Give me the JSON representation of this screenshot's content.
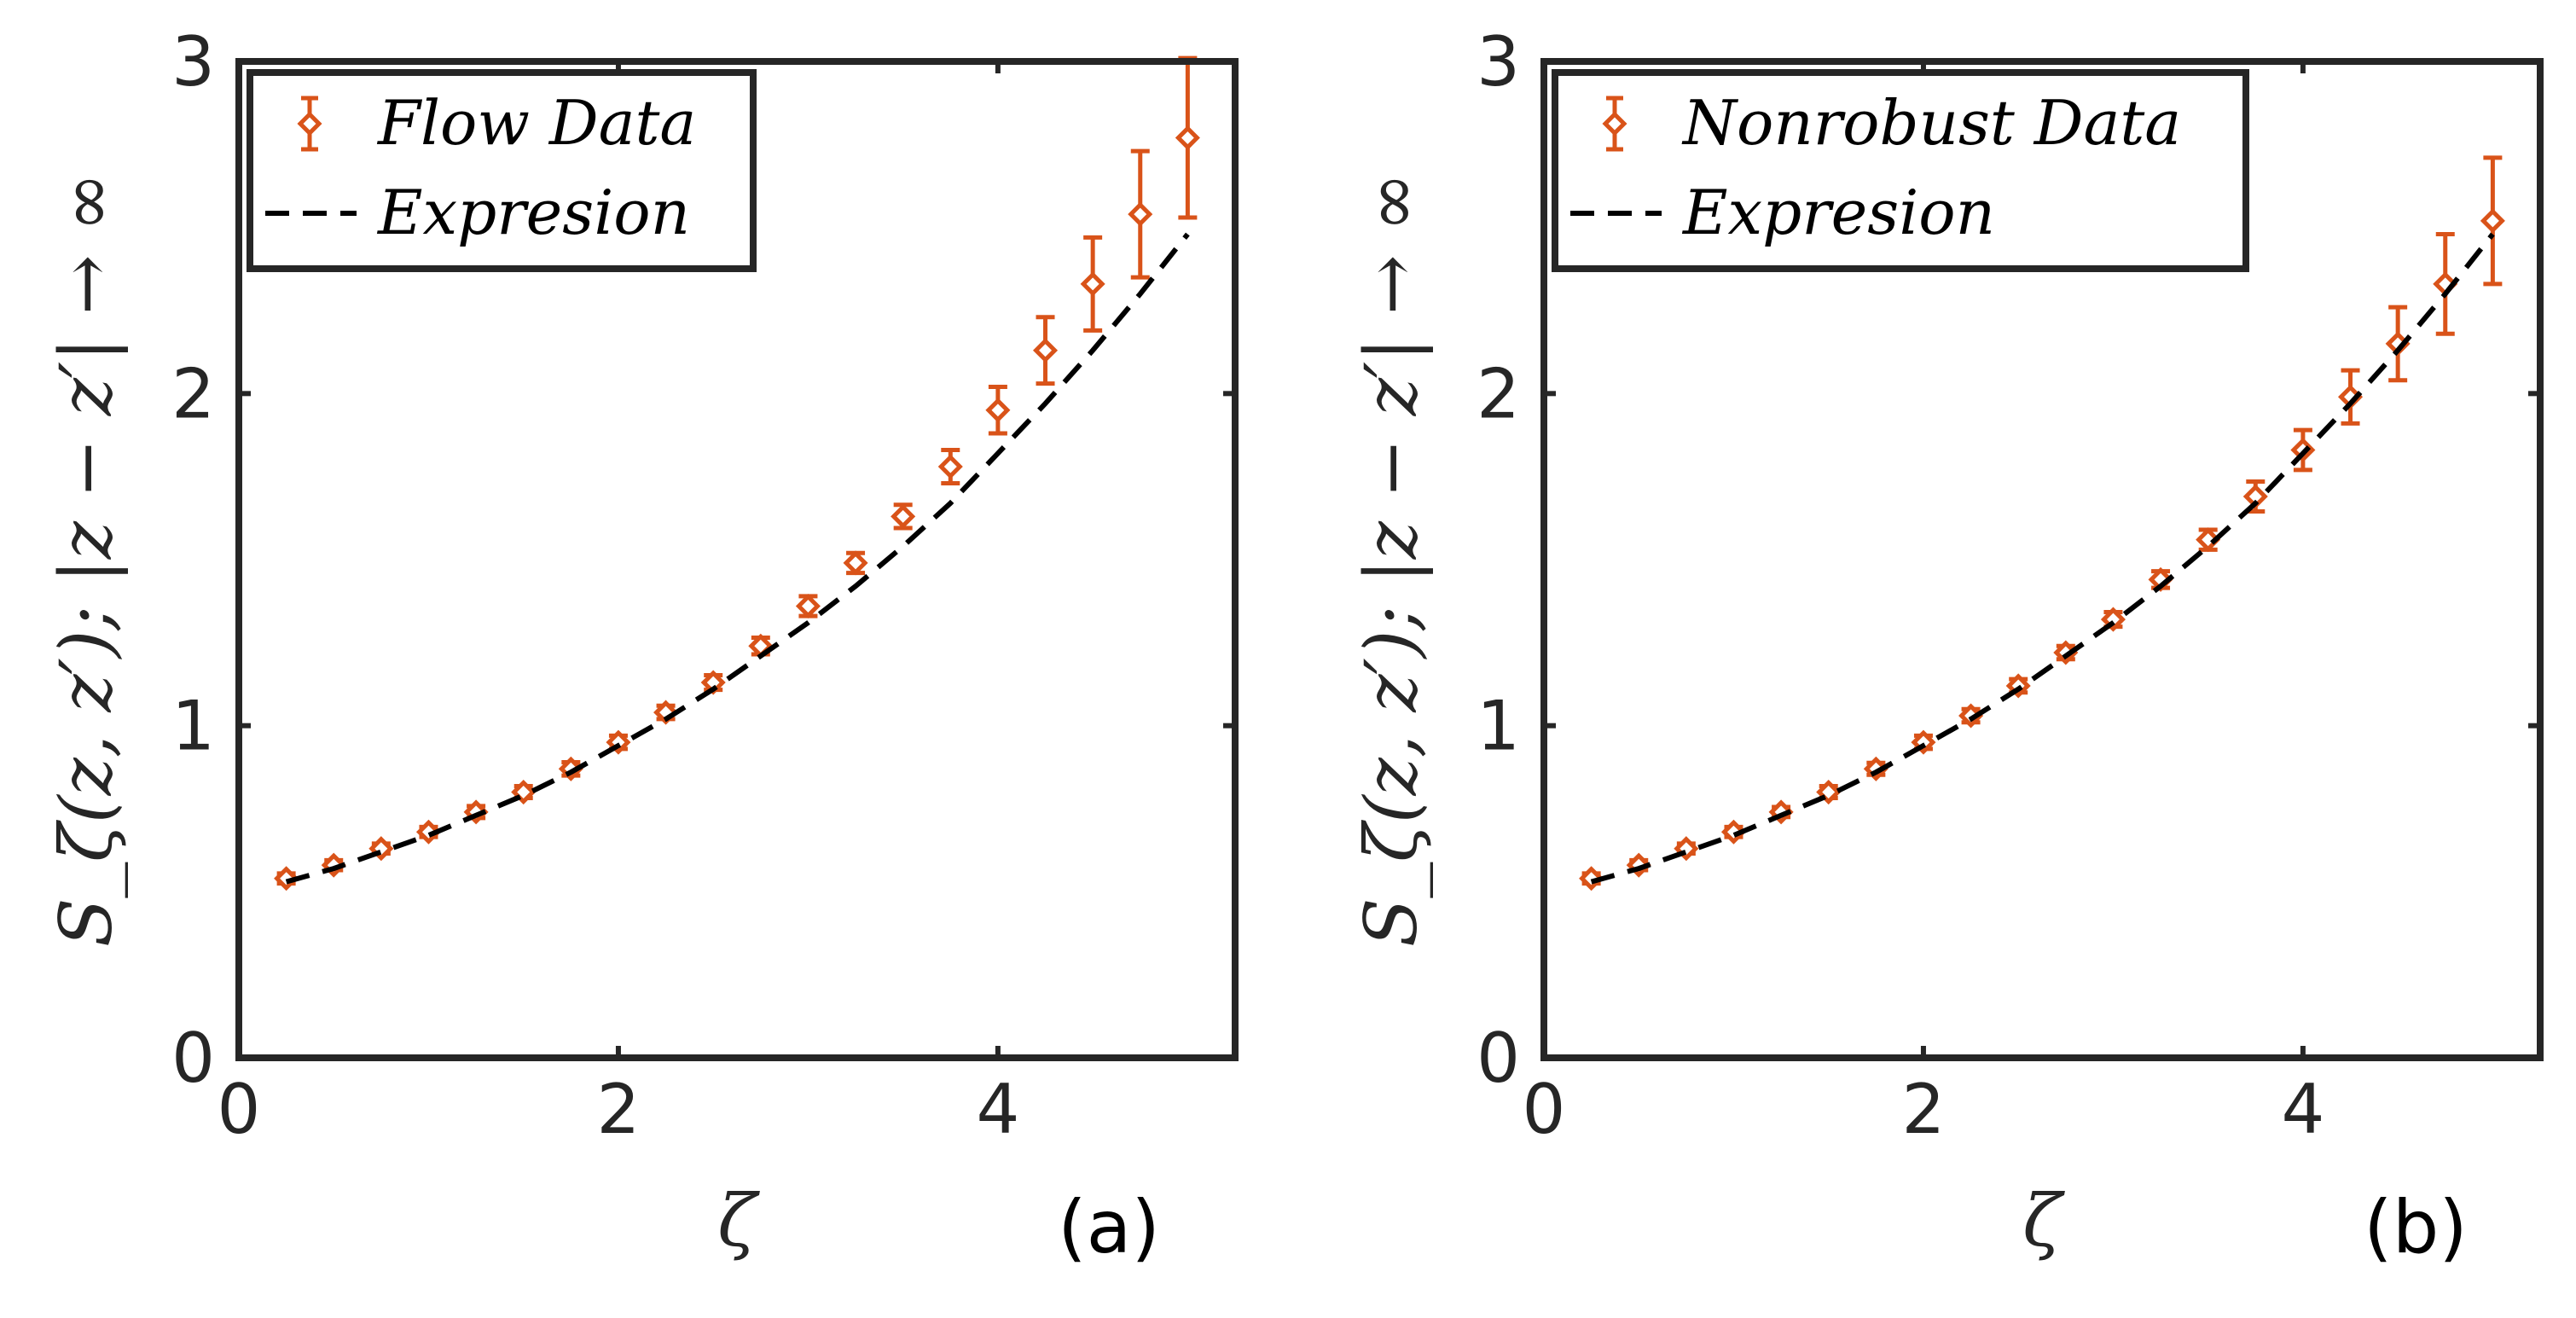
{
  "chart_data": [
    {
      "type": "scatter",
      "panel_label": "(a)",
      "xlabel": "ζ",
      "ylabel": "S_ζ(z, z′); |z − z′| → ∞",
      "xlim": [
        0,
        5.25
      ],
      "ylim": [
        0,
        3
      ],
      "xticks": [
        0,
        2,
        4
      ],
      "yticks": [
        0,
        1,
        2,
        3
      ],
      "legend_position": "top-left",
      "series": [
        {
          "name": "Flow Data",
          "kind": "errorbar",
          "color": "#D95319",
          "x": [
            0.25,
            0.5,
            0.75,
            1.0,
            1.25,
            1.5,
            1.75,
            2.0,
            2.25,
            2.5,
            2.75,
            3.0,
            3.25,
            3.5,
            3.75,
            4.0,
            4.25,
            4.5,
            4.75,
            5.0
          ],
          "y": [
            0.54,
            0.58,
            0.63,
            0.68,
            0.74,
            0.8,
            0.87,
            0.95,
            1.04,
            1.13,
            1.24,
            1.36,
            1.49,
            1.63,
            1.78,
            1.95,
            2.13,
            2.33,
            2.54,
            2.77
          ],
          "err": [
            0.015,
            0.015,
            0.015,
            0.015,
            0.018,
            0.018,
            0.02,
            0.02,
            0.02,
            0.022,
            0.025,
            0.03,
            0.03,
            0.035,
            0.05,
            0.07,
            0.1,
            0.14,
            0.19,
            0.24
          ]
        },
        {
          "name": "Expresion",
          "kind": "dashed-line",
          "color": "#000000",
          "x": [
            0.25,
            0.5,
            0.75,
            1.0,
            1.25,
            1.5,
            1.75,
            2.0,
            2.25,
            2.5,
            2.75,
            3.0,
            3.25,
            3.5,
            3.75,
            4.0,
            4.25,
            4.5,
            4.75,
            5.0
          ],
          "y": [
            0.53,
            0.57,
            0.62,
            0.67,
            0.73,
            0.79,
            0.86,
            0.94,
            1.02,
            1.11,
            1.21,
            1.31,
            1.42,
            1.54,
            1.67,
            1.82,
            1.97,
            2.13,
            2.3,
            2.48
          ]
        }
      ]
    },
    {
      "type": "scatter",
      "panel_label": "(b)",
      "xlabel": "ζ",
      "ylabel": "S_ζ(z, z′); |z − z′| → ∞",
      "xlim": [
        0,
        5.25
      ],
      "ylim": [
        0,
        3
      ],
      "xticks": [
        0,
        2,
        4
      ],
      "yticks": [
        0,
        1,
        2,
        3
      ],
      "legend_position": "top-left",
      "series": [
        {
          "name": "Nonrobust Data",
          "kind": "errorbar",
          "color": "#D95319",
          "x": [
            0.25,
            0.5,
            0.75,
            1.0,
            1.25,
            1.5,
            1.75,
            2.0,
            2.25,
            2.5,
            2.75,
            3.0,
            3.25,
            3.5,
            3.75,
            4.0,
            4.25,
            4.5,
            4.75,
            5.0
          ],
          "y": [
            0.54,
            0.58,
            0.63,
            0.68,
            0.74,
            0.8,
            0.87,
            0.95,
            1.03,
            1.12,
            1.22,
            1.32,
            1.44,
            1.56,
            1.69,
            1.83,
            1.99,
            2.15,
            2.33,
            2.52
          ],
          "err": [
            0.015,
            0.015,
            0.015,
            0.015,
            0.015,
            0.018,
            0.018,
            0.02,
            0.02,
            0.02,
            0.02,
            0.022,
            0.025,
            0.03,
            0.045,
            0.06,
            0.08,
            0.11,
            0.15,
            0.19
          ]
        },
        {
          "name": "Expresion",
          "kind": "dashed-line",
          "color": "#000000",
          "x": [
            0.25,
            0.5,
            0.75,
            1.0,
            1.25,
            1.5,
            1.75,
            2.0,
            2.25,
            2.5,
            2.75,
            3.0,
            3.25,
            3.5,
            3.75,
            4.0,
            4.25,
            4.5,
            4.75,
            5.0
          ],
          "y": [
            0.53,
            0.57,
            0.62,
            0.67,
            0.73,
            0.79,
            0.86,
            0.94,
            1.02,
            1.11,
            1.21,
            1.31,
            1.42,
            1.54,
            1.67,
            1.82,
            1.97,
            2.13,
            2.3,
            2.48
          ]
        }
      ]
    }
  ]
}
